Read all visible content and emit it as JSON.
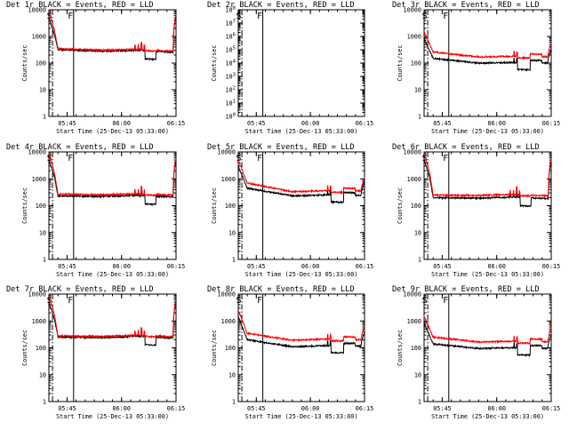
{
  "colors": {
    "events": "#000000",
    "lld": "#ff0000",
    "axis": "#000000",
    "background": "#ffffff"
  },
  "chart_data": [
    {
      "type": "line",
      "detector": "1",
      "title": "Det 1r BLACK = Events, RED = LLD",
      "xlabel": "Start Time (25-Dec-13 05:33:00)",
      "ylabel": "Counts/sec",
      "xlim_min": [
        40,
        75
      ],
      "yscale": "log",
      "ylim": [
        1,
        10000
      ],
      "yticks": [
        "1",
        "10",
        "100",
        "1000",
        "10000"
      ],
      "xticks": [
        {
          "min": 45,
          "label": "05:45"
        },
        {
          "min": 60,
          "label": "06:00"
        },
        {
          "min": 75,
          "label": "06:15"
        }
      ],
      "markers": [
        {
          "label": "S",
          "min": 41.0,
          "style": "dashdot"
        },
        {
          "label": "F",
          "min": 46.8,
          "style": "solid"
        }
      ],
      "series": [
        {
          "name": "Events",
          "color": "#000000",
          "shape": "A",
          "knots": [
            [
              40.0,
              5000
            ],
            [
              41.5,
              1200
            ],
            [
              42.5,
              320
            ],
            [
              55.0,
              280
            ],
            [
              64.0,
              300
            ],
            [
              75.0,
              250
            ]
          ]
        },
        {
          "name": "LLD",
          "color": "#ff0000",
          "shape": "A",
          "knots": [
            [
              40.0,
              9000
            ],
            [
              41.5,
              1800
            ],
            [
              42.5,
              350
            ],
            [
              55.0,
              305
            ],
            [
              64.0,
              330
            ],
            [
              75.0,
              275
            ]
          ]
        }
      ]
    },
    {
      "type": "line",
      "detector": "2",
      "title": "Det 2r BLACK = Events, RED = LLD",
      "xlabel": "Start Time (25-Dec-13 05:33:00)",
      "ylabel": "Counts/sec",
      "xlim_min": [
        40,
        75
      ],
      "yscale": "log",
      "ylim": [
        1,
        100000000
      ],
      "yticks": [
        "10<tspan baseline-shift='super' font-size='5.6px'>0</tspan>",
        "10<tspan baseline-shift='super' font-size='5.6px'>1</tspan>",
        "10<tspan baseline-shift='super' font-size='5.6px'>2</tspan>",
        "10<tspan baseline-shift='super' font-size='5.6px'>3</tspan>",
        "10<tspan baseline-shift='super' font-size='5.6px'>4</tspan>",
        "10<tspan baseline-shift='super' font-size='5.6px'>5</tspan>",
        "10<tspan baseline-shift='super' font-size='5.6px'>6</tspan>",
        "10<tspan baseline-shift='super' font-size='5.6px'>7</tspan>",
        "10<tspan baseline-shift='super' font-size='5.6px'>8</tspan>"
      ],
      "xticks": [
        {
          "min": 45,
          "label": "05:45"
        },
        {
          "min": 60,
          "label": "06:00"
        },
        {
          "min": 75,
          "label": "06:15"
        }
      ],
      "markers": [
        {
          "label": "S",
          "min": 41.0,
          "style": "dashdot"
        },
        {
          "label": "F",
          "min": 46.8,
          "style": "solid"
        }
      ],
      "series": []
    },
    {
      "type": "line",
      "detector": "3",
      "title": "Det 3r BLACK = Events, RED = LLD",
      "xlabel": "Start Time (25-Dec-13 05:33:00)",
      "ylabel": "Counts/sec",
      "xlim_min": [
        40,
        75
      ],
      "yscale": "log",
      "ylim": [
        1,
        10000
      ],
      "yticks": [
        "1",
        "10",
        "100",
        "1000",
        "10000"
      ],
      "xticks": [
        {
          "min": 45,
          "label": "05:45"
        },
        {
          "min": 60,
          "label": "06:00"
        },
        {
          "min": 75,
          "label": "06:15"
        }
      ],
      "markers": [
        {
          "label": "S",
          "min": 41.0,
          "style": "dashdot"
        },
        {
          "label": "F",
          "min": 46.8,
          "style": "solid"
        }
      ],
      "series": [
        {
          "name": "Events",
          "color": "#000000",
          "shape": "B",
          "knots": [
            [
              40.0,
              800
            ],
            [
              42.5,
              150
            ],
            [
              55.0,
              100
            ],
            [
              64.0,
              105
            ],
            [
              75.0,
              100
            ]
          ]
        },
        {
          "name": "LLD",
          "color": "#ff0000",
          "shape": "B",
          "knots": [
            [
              40.0,
              1500
            ],
            [
              42.5,
              260
            ],
            [
              55.0,
              170
            ],
            [
              64.0,
              180
            ],
            [
              75.0,
              170
            ]
          ]
        }
      ]
    },
    {
      "type": "line",
      "detector": "4",
      "title": "Det 4r BLACK = Events, RED = LLD",
      "xlabel": "Start Time (25-Dec-13 05:33:00)",
      "ylabel": "Counts/sec",
      "xlim_min": [
        40,
        75
      ],
      "yscale": "log",
      "ylim": [
        1,
        10000
      ],
      "yticks": [
        "1",
        "10",
        "100",
        "1000",
        "10000"
      ],
      "xticks": [
        {
          "min": 45,
          "label": "05:45"
        },
        {
          "min": 60,
          "label": "06:00"
        },
        {
          "min": 75,
          "label": "06:15"
        }
      ],
      "markers": [
        {
          "label": "S",
          "min": 41.0,
          "style": "dashdot"
        },
        {
          "label": "F",
          "min": 46.8,
          "style": "solid"
        }
      ],
      "series": [
        {
          "name": "Events",
          "color": "#000000",
          "shape": "A",
          "knots": [
            [
              40.0,
              5000
            ],
            [
              41.5,
              1200
            ],
            [
              42.5,
              230
            ],
            [
              55.0,
              220
            ],
            [
              64.0,
              240
            ],
            [
              75.0,
              210
            ]
          ]
        },
        {
          "name": "LLD",
          "color": "#ff0000",
          "shape": "A",
          "knots": [
            [
              40.0,
              9000
            ],
            [
              41.5,
              1800
            ],
            [
              42.5,
              270
            ],
            [
              55.0,
              255
            ],
            [
              64.0,
              275
            ],
            [
              75.0,
              245
            ]
          ]
        }
      ]
    },
    {
      "type": "line",
      "detector": "5",
      "title": "Det 5r BLACK = Events, RED = LLD",
      "xlabel": "Start Time (25-Dec-13 05:33:00)",
      "ylabel": "Counts/sec",
      "xlim_min": [
        40,
        75
      ],
      "yscale": "log",
      "ylim": [
        1,
        10000
      ],
      "yticks": [
        "1",
        "10",
        "100",
        "1000",
        "10000"
      ],
      "xticks": [
        {
          "min": 45,
          "label": "05:45"
        },
        {
          "min": 60,
          "label": "06:00"
        },
        {
          "min": 75,
          "label": "06:15"
        }
      ],
      "markers": [
        {
          "label": "S",
          "min": 41.0,
          "style": "dashdot"
        },
        {
          "label": "F",
          "min": 46.8,
          "style": "solid"
        }
      ],
      "series": [
        {
          "name": "Events",
          "color": "#000000",
          "shape": "B",
          "knots": [
            [
              40.0,
              3000
            ],
            [
              42.5,
              450
            ],
            [
              55.0,
              230
            ],
            [
              64.0,
              250
            ],
            [
              75.0,
              240
            ]
          ]
        },
        {
          "name": "LLD",
          "color": "#ff0000",
          "shape": "B",
          "knots": [
            [
              40.0,
              5000
            ],
            [
              42.5,
              700
            ],
            [
              55.0,
              330
            ],
            [
              64.0,
              360
            ],
            [
              75.0,
              350
            ]
          ]
        }
      ]
    },
    {
      "type": "line",
      "detector": "6",
      "title": "Det 6r BLACK = Events, RED = LLD",
      "xlabel": "Start Time (25-Dec-13 05:33:00)",
      "ylabel": "Counts/sec",
      "xlim_min": [
        40,
        75
      ],
      "yscale": "log",
      "ylim": [
        1,
        10000
      ],
      "yticks": [
        "1",
        "10",
        "100",
        "1000",
        "10000"
      ],
      "xticks": [
        {
          "min": 45,
          "label": "05:45"
        },
        {
          "min": 60,
          "label": "06:00"
        },
        {
          "min": 75,
          "label": "06:15"
        }
      ],
      "markers": [
        {
          "label": "S",
          "min": 41.0,
          "style": "dashdot"
        },
        {
          "label": "F",
          "min": 46.8,
          "style": "solid"
        }
      ],
      "series": [
        {
          "name": "Events",
          "color": "#000000",
          "shape": "A",
          "knots": [
            [
              40.0,
              5000
            ],
            [
              41.5,
              1200
            ],
            [
              42.5,
              200
            ],
            [
              55.0,
              190
            ],
            [
              64.0,
              210
            ],
            [
              75.0,
              180
            ]
          ]
        },
        {
          "name": "LLD",
          "color": "#ff0000",
          "shape": "A",
          "knots": [
            [
              40.0,
              9000
            ],
            [
              41.5,
              1800
            ],
            [
              42.5,
              250
            ],
            [
              55.0,
              240
            ],
            [
              64.0,
              260
            ],
            [
              75.0,
              230
            ]
          ]
        }
      ]
    },
    {
      "type": "line",
      "detector": "7",
      "title": "Det 7r BLACK = Events, RED = LLD",
      "xlabel": "Start Time (25-Dec-13 05:33:00)",
      "ylabel": "Counts/sec",
      "xlim_min": [
        40,
        75
      ],
      "yscale": "log",
      "ylim": [
        1,
        10000
      ],
      "yticks": [
        "1",
        "10",
        "100",
        "1000",
        "10000"
      ],
      "xticks": [
        {
          "min": 45,
          "label": "05:45"
        },
        {
          "min": 60,
          "label": "06:00"
        },
        {
          "min": 75,
          "label": "06:15"
        }
      ],
      "markers": [
        {
          "label": "S",
          "min": 41.0,
          "style": "dashdot"
        },
        {
          "label": "F",
          "min": 46.8,
          "style": "solid"
        }
      ],
      "series": [
        {
          "name": "Events",
          "color": "#000000",
          "shape": "A",
          "knots": [
            [
              40.0,
              5000
            ],
            [
              41.5,
              1200
            ],
            [
              42.5,
              250
            ],
            [
              55.0,
              240
            ],
            [
              64.0,
              270
            ],
            [
              75.0,
              230
            ]
          ]
        },
        {
          "name": "LLD",
          "color": "#ff0000",
          "shape": "A",
          "knots": [
            [
              40.0,
              9000
            ],
            [
              41.5,
              1800
            ],
            [
              42.5,
              280
            ],
            [
              55.0,
              265
            ],
            [
              64.0,
              295
            ],
            [
              75.0,
              255
            ]
          ]
        }
      ]
    },
    {
      "type": "line",
      "detector": "8",
      "title": "Det 8r BLACK = Events, RED = LLD",
      "xlabel": "Start Time (25-Dec-13 05:33:00)",
      "ylabel": "Counts/sec",
      "xlim_min": [
        40,
        75
      ],
      "yscale": "log",
      "ylim": [
        1,
        10000
      ],
      "yticks": [
        "1",
        "10",
        "100",
        "1000",
        "10000"
      ],
      "xticks": [
        {
          "min": 45,
          "label": "05:45"
        },
        {
          "min": 60,
          "label": "06:00"
        },
        {
          "min": 75,
          "label": "06:15"
        }
      ],
      "markers": [
        {
          "label": "S",
          "min": 41.0,
          "style": "dashdot"
        },
        {
          "label": "F",
          "min": 46.8,
          "style": "solid"
        }
      ],
      "series": [
        {
          "name": "Events",
          "color": "#000000",
          "shape": "B",
          "knots": [
            [
              40.0,
              1500
            ],
            [
              42.5,
              200
            ],
            [
              55.0,
              110
            ],
            [
              64.0,
              120
            ],
            [
              75.0,
              115
            ]
          ]
        },
        {
          "name": "LLD",
          "color": "#ff0000",
          "shape": "B",
          "knots": [
            [
              40.0,
              2500
            ],
            [
              42.5,
              350
            ],
            [
              55.0,
              190
            ],
            [
              64.0,
              210
            ],
            [
              75.0,
              200
            ]
          ]
        }
      ]
    },
    {
      "type": "line",
      "detector": "9",
      "title": "Det 9r BLACK = Events, RED = LLD",
      "xlabel": "Start Time (25-Dec-13 05:33:00)",
      "ylabel": "Counts/sec",
      "xlim_min": [
        40,
        75
      ],
      "yscale": "log",
      "ylim": [
        1,
        10000
      ],
      "yticks": [
        "1",
        "10",
        "100",
        "1000",
        "10000"
      ],
      "xticks": [
        {
          "min": 45,
          "label": "05:45"
        },
        {
          "min": 60,
          "label": "06:00"
        },
        {
          "min": 75,
          "label": "06:15"
        }
      ],
      "markers": [
        {
          "label": "S",
          "min": 41.0,
          "style": "dashdot"
        },
        {
          "label": "F",
          "min": 46.8,
          "style": "solid"
        }
      ],
      "series": [
        {
          "name": "Events",
          "color": "#000000",
          "shape": "B",
          "knots": [
            [
              40.0,
              800
            ],
            [
              42.5,
              140
            ],
            [
              55.0,
              95
            ],
            [
              64.0,
              100
            ],
            [
              75.0,
              95
            ]
          ]
        },
        {
          "name": "LLD",
          "color": "#ff0000",
          "shape": "B",
          "knots": [
            [
              40.0,
              1500
            ],
            [
              42.5,
              250
            ],
            [
              55.0,
              165
            ],
            [
              64.0,
              175
            ],
            [
              75.0,
              165
            ]
          ]
        }
      ]
    }
  ]
}
